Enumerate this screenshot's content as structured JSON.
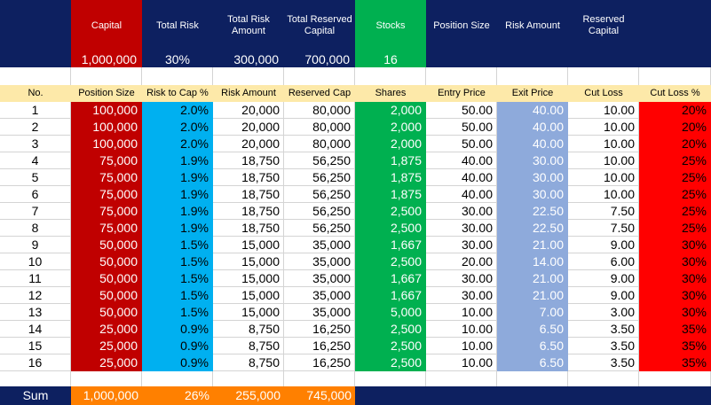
{
  "summary": {
    "capital_label": "Capital",
    "capital_value": "1,000,000",
    "total_risk_label": "Total Risk",
    "total_risk_value": "30%",
    "total_risk_amount_label": "Total Risk Amount",
    "total_risk_amount_value": "300,000",
    "total_reserved_capital_label": "Total Reserved Capital",
    "total_reserved_capital_value": "700,000",
    "stocks_label": "Stocks",
    "stocks_value": "16",
    "position_size_label": "Position Size",
    "risk_amount_label": "Risk Amount",
    "reserved_capital_label": "Reserved Capital"
  },
  "columns": [
    "No.",
    "Position Size",
    "Risk to Cap %",
    "Risk Amount",
    "Reserved Cap",
    "Shares",
    "Entry Price",
    "Exit Price",
    "Cut Loss",
    "Cut Loss %"
  ],
  "rows": [
    [
      "1",
      "100,000",
      "2.0%",
      "20,000",
      "80,000",
      "2,000",
      "50.00",
      "40.00",
      "10.00",
      "20%"
    ],
    [
      "2",
      "100,000",
      "2.0%",
      "20,000",
      "80,000",
      "2,000",
      "50.00",
      "40.00",
      "10.00",
      "20%"
    ],
    [
      "3",
      "100,000",
      "2.0%",
      "20,000",
      "80,000",
      "2,000",
      "50.00",
      "40.00",
      "10.00",
      "20%"
    ],
    [
      "4",
      "75,000",
      "1.9%",
      "18,750",
      "56,250",
      "1,875",
      "40.00",
      "30.00",
      "10.00",
      "25%"
    ],
    [
      "5",
      "75,000",
      "1.9%",
      "18,750",
      "56,250",
      "1,875",
      "40.00",
      "30.00",
      "10.00",
      "25%"
    ],
    [
      "6",
      "75,000",
      "1.9%",
      "18,750",
      "56,250",
      "1,875",
      "40.00",
      "30.00",
      "10.00",
      "25%"
    ],
    [
      "7",
      "75,000",
      "1.9%",
      "18,750",
      "56,250",
      "2,500",
      "30.00",
      "22.50",
      "7.50",
      "25%"
    ],
    [
      "8",
      "75,000",
      "1.9%",
      "18,750",
      "56,250",
      "2,500",
      "30.00",
      "22.50",
      "7.50",
      "25%"
    ],
    [
      "9",
      "50,000",
      "1.5%",
      "15,000",
      "35,000",
      "1,667",
      "30.00",
      "21.00",
      "9.00",
      "30%"
    ],
    [
      "10",
      "50,000",
      "1.5%",
      "15,000",
      "35,000",
      "2,500",
      "20.00",
      "14.00",
      "6.00",
      "30%"
    ],
    [
      "11",
      "50,000",
      "1.5%",
      "15,000",
      "35,000",
      "1,667",
      "30.00",
      "21.00",
      "9.00",
      "30%"
    ],
    [
      "12",
      "50,000",
      "1.5%",
      "15,000",
      "35,000",
      "1,667",
      "30.00",
      "21.00",
      "9.00",
      "30%"
    ],
    [
      "13",
      "50,000",
      "1.5%",
      "15,000",
      "35,000",
      "5,000",
      "10.00",
      "7.00",
      "3.00",
      "30%"
    ],
    [
      "14",
      "25,000",
      "0.9%",
      "8,750",
      "16,250",
      "2,500",
      "10.00",
      "6.50",
      "3.50",
      "35%"
    ],
    [
      "15",
      "25,000",
      "0.9%",
      "8,750",
      "16,250",
      "2,500",
      "10.00",
      "6.50",
      "3.50",
      "35%"
    ],
    [
      "16",
      "25,000",
      "0.9%",
      "8,750",
      "16,250",
      "2,500",
      "10.00",
      "6.50",
      "3.50",
      "35%"
    ]
  ],
  "sum_row": {
    "label": "Sum",
    "position_size": "1,000,000",
    "risk_pct": "26%",
    "risk_amount": "255,000",
    "reserved_cap": "745,000"
  },
  "colors": {
    "header_navy": "#0d2060",
    "capital_red": "#c00000",
    "risk_blue": "#00b0f0",
    "stocks_green": "#00b050",
    "exit_periwinkle": "#8eaadb",
    "cutloss_red": "#ff0000",
    "sum_orange": "#ff8000",
    "column_header_yellow": "#fde9a9"
  }
}
